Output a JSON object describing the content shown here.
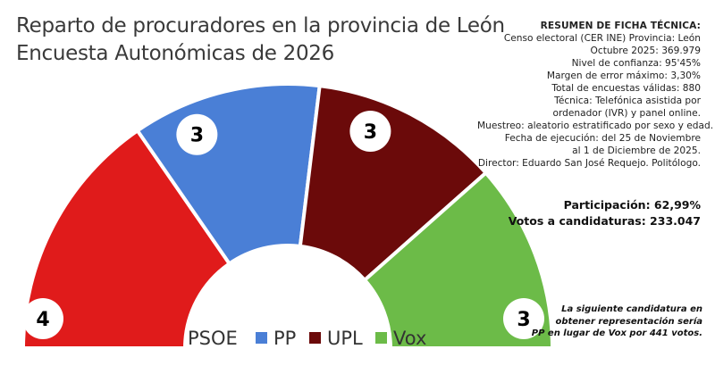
{
  "title": {
    "line1": "Reparto de procuradores en la provincia de León",
    "line2": "Encuesta Autonómicas de 2026"
  },
  "chart_data": {
    "type": "pie",
    "title": "Reparto de procuradores en la provincia de León",
    "subtitle": "Encuesta Autonómicas de 2026",
    "categories": [
      "PSOE",
      "PP",
      "UPL",
      "Vox"
    ],
    "values": [
      4,
      3,
      3,
      3
    ],
    "colors": [
      "#e01b1b",
      "#4a7fd6",
      "#6b0a0a",
      "#6cbb48"
    ],
    "legend": "bottom"
  },
  "tech_sheet": {
    "heading": "RESUMEN DE FICHA TÉCNICA:",
    "lines": [
      "Censo electoral (CER INE) Provincia: León",
      "Octubre 2025: 369.979",
      "Nivel de confianza: 95'45%",
      "Margen de error máximo: 3,30%",
      "Total de encuestas válidas: 880",
      "Técnica: Telefónica asistida por",
      "ordenador (IVR) y panel online.",
      "Muestreo: aleatorio estratificado por sexo y edad.",
      "Fecha de ejecución: del 25 de Noviembre",
      "al 1 de Diciembre de 2025.",
      "Director: Eduardo San José Requejo. Politólogo."
    ]
  },
  "summary": {
    "participation": "Participación: 62,99%",
    "votes": "Votos a candidaturas: 233.047"
  },
  "note": {
    "lines": [
      "La siguiente candidatura en",
      "obtener representación sería",
      "PP en lugar de Vox por 441 votos."
    ]
  }
}
